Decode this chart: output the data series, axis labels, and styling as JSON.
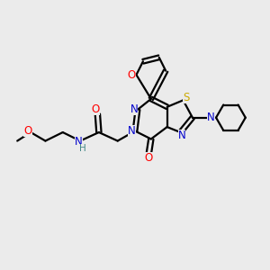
{
  "bg_color": "#ebebeb",
  "atom_colors": {
    "C": "#000000",
    "N": "#0000cc",
    "O": "#ff0000",
    "S": "#ccaa00",
    "H": "#448888"
  },
  "bond_color": "#000000",
  "figsize": [
    3.0,
    3.0
  ],
  "dpi": 100
}
